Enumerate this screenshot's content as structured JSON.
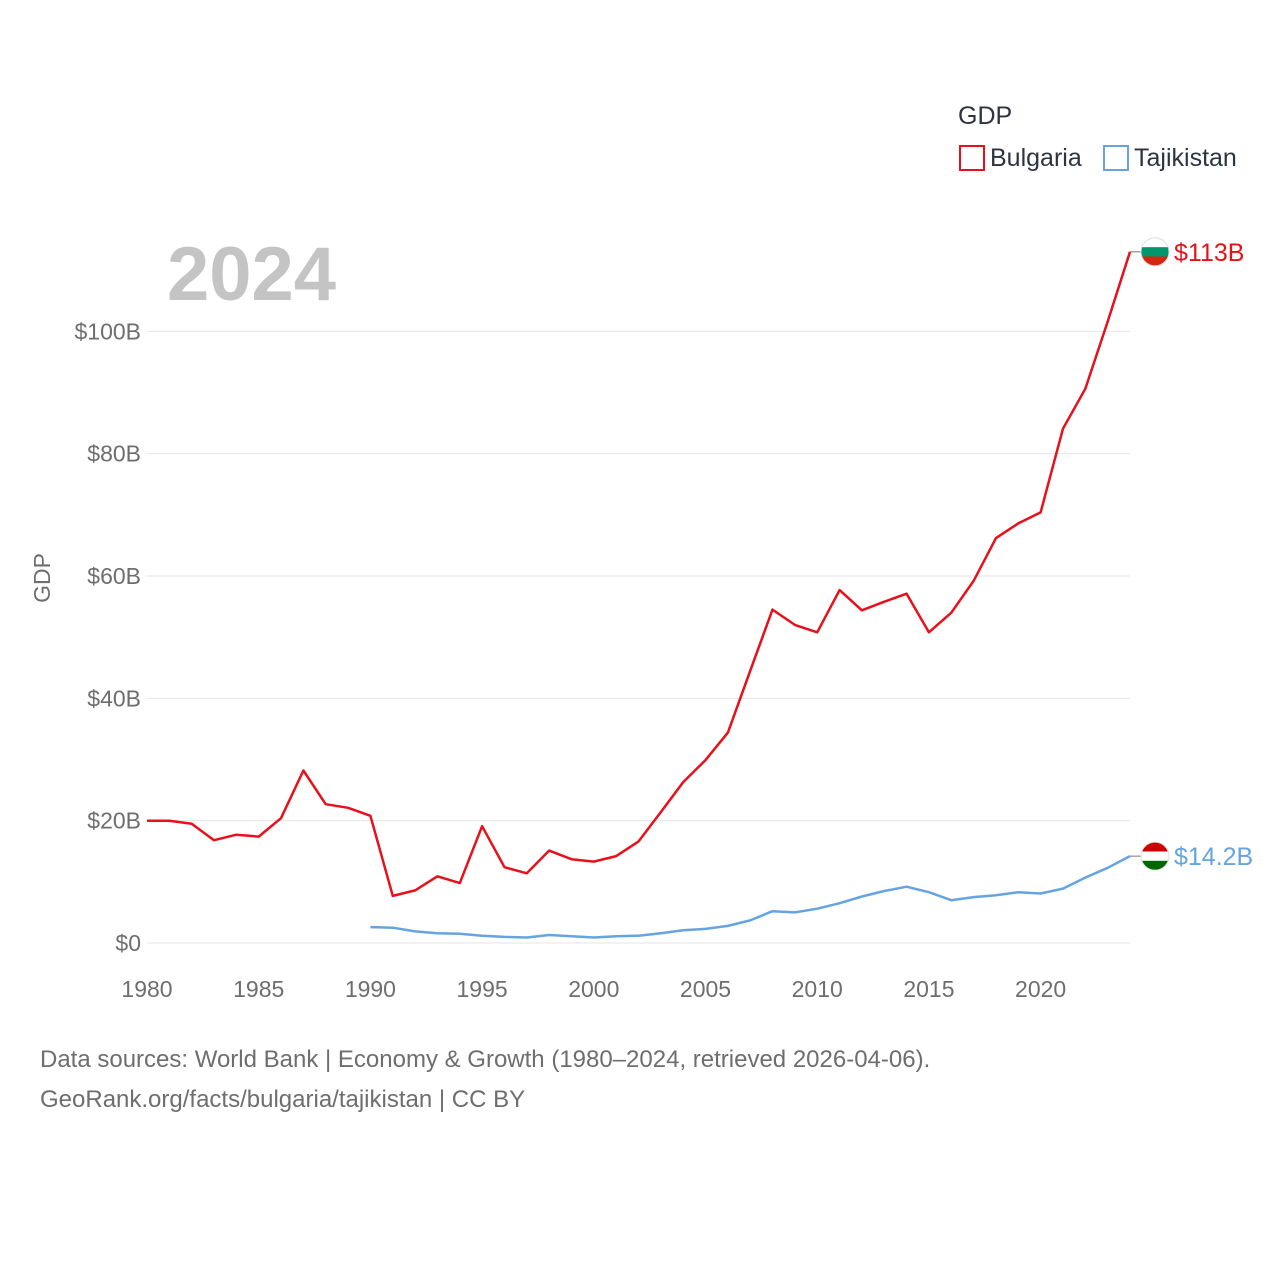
{
  "chart_data": {
    "type": "line",
    "year_label": "2024",
    "ylabel": "GDP",
    "xlabel": "",
    "legend": {
      "title": "GDP",
      "placement": "top-right"
    },
    "xlim": [
      1980,
      2024
    ],
    "ylim": [
      0,
      120
    ],
    "x_ticks": [
      1980,
      1985,
      1990,
      1995,
      2000,
      2005,
      2010,
      2015,
      2020
    ],
    "y_ticks": [
      {
        "value": 0,
        "label": "$0"
      },
      {
        "value": 20,
        "label": "$20B"
      },
      {
        "value": 40,
        "label": "$40B"
      },
      {
        "value": 60,
        "label": "$60B"
      },
      {
        "value": 80,
        "label": "$80B"
      },
      {
        "value": 100,
        "label": "$100B"
      }
    ],
    "series": [
      {
        "name": "Bulgaria",
        "color": "#e8101a",
        "end_label": "$113B",
        "flag_colors": [
          "#ffffff",
          "#00966e",
          "#d62612"
        ],
        "x": [
          1980,
          1981,
          1982,
          1983,
          1984,
          1985,
          1986,
          1987,
          1988,
          1989,
          1990,
          1991,
          1992,
          1993,
          1994,
          1995,
          1996,
          1997,
          1998,
          1999,
          2000,
          2001,
          2002,
          2003,
          2004,
          2005,
          2006,
          2007,
          2008,
          2009,
          2010,
          2011,
          2012,
          2013,
          2014,
          2015,
          2016,
          2017,
          2018,
          2019,
          2020,
          2021,
          2022,
          2023,
          2024
        ],
        "values": [
          20.0,
          20.0,
          19.5,
          16.8,
          17.7,
          17.4,
          20.4,
          28.2,
          22.7,
          22.1,
          20.8,
          7.7,
          8.6,
          10.9,
          9.8,
          19.1,
          12.4,
          11.4,
          15.1,
          13.7,
          13.3,
          14.2,
          16.6,
          21.4,
          26.3,
          29.9,
          34.4,
          44.5,
          54.5,
          52.0,
          50.8,
          57.7,
          54.4,
          55.8,
          57.1,
          50.8,
          54.0,
          59.2,
          66.2,
          68.6,
          70.4,
          84.1,
          90.6,
          101.6,
          113.0
        ]
      },
      {
        "name": "Tajikistan",
        "color": "#66a4e0",
        "end_label": "$14.2B",
        "flag_colors": [
          "#cc0000",
          "#ffffff",
          "#006600"
        ],
        "x": [
          1990,
          1991,
          1992,
          1993,
          1994,
          1995,
          1996,
          1997,
          1998,
          1999,
          2000,
          2001,
          2002,
          2003,
          2004,
          2005,
          2006,
          2007,
          2008,
          2009,
          2010,
          2011,
          2012,
          2013,
          2014,
          2015,
          2016,
          2017,
          2018,
          2019,
          2020,
          2021,
          2022,
          2023,
          2024
        ],
        "values": [
          2.6,
          2.5,
          1.9,
          1.6,
          1.5,
          1.2,
          1.0,
          0.9,
          1.3,
          1.1,
          0.9,
          1.1,
          1.2,
          1.6,
          2.1,
          2.3,
          2.8,
          3.7,
          5.2,
          5.0,
          5.6,
          6.5,
          7.6,
          8.5,
          9.2,
          8.3,
          7.0,
          7.5,
          7.8,
          8.3,
          8.1,
          8.9,
          10.7,
          12.3,
          14.2
        ]
      }
    ]
  },
  "footer": {
    "line1": "Data sources: World Bank | Economy & Growth (1980–2024, retrieved 2026-04-06).",
    "line2": "GeoRank.org/facts/bulgaria/tajikistan | CC BY"
  }
}
